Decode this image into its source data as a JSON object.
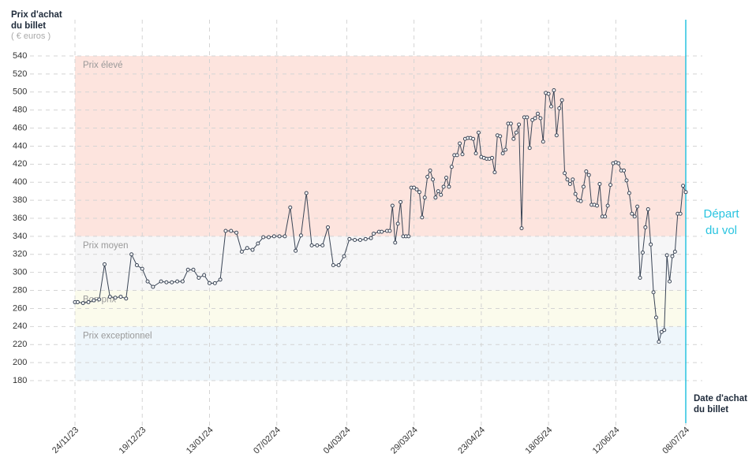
{
  "chart_data": {
    "type": "line",
    "y_title": "Prix d'achat du billet",
    "y_unit": "( € euros )",
    "x_title": "Date d'achat du billet",
    "annotation": {
      "text": "Départ du vol",
      "x": "08/07/24",
      "color": "#29c4e0"
    },
    "bands": [
      {
        "label": "Prix élevé",
        "from": 340,
        "to": 540,
        "color": "#fde4de"
      },
      {
        "label": "Prix moyen",
        "from": 280,
        "to": 340,
        "color": "#f6f6f7"
      },
      {
        "label": "Bon prix",
        "from": 240,
        "to": 280,
        "color": "#fbfbec"
      },
      {
        "label": "Prix exceptionnel",
        "from": 180,
        "to": 240,
        "color": "#eef6fb"
      }
    ],
    "ylim": [
      180,
      540
    ],
    "yticks": [
      180,
      200,
      220,
      240,
      260,
      280,
      300,
      320,
      340,
      360,
      380,
      400,
      420,
      440,
      460,
      480,
      500,
      520,
      540
    ],
    "xlim": [
      "24/11/23",
      "08/07/24"
    ],
    "xticks": [
      "24/11/23",
      "19/12/23",
      "13/01/24",
      "07/02/24",
      "04/03/24",
      "29/03/24",
      "23/04/24",
      "18/05/24",
      "12/06/24",
      "08/07/24"
    ],
    "grid": true,
    "x": [
      "24/11/23",
      "25/11/23",
      "27/11/23",
      "29/11/23",
      "01/12/23",
      "03/12/23",
      "05/12/23",
      "07/12/23",
      "09/12/23",
      "11/12/23",
      "13/12/23",
      "15/12/23",
      "17/12/23",
      "19/12/23",
      "21/12/23",
      "23/12/23",
      "26/12/23",
      "28/12/23",
      "30/12/23",
      "01/01/24",
      "03/01/24",
      "05/01/24",
      "07/01/24",
      "09/01/24",
      "11/01/24",
      "13/01/24",
      "15/01/24",
      "17/01/24",
      "19/01/24",
      "21/01/24",
      "23/01/24",
      "25/01/24",
      "27/01/24",
      "29/01/24",
      "31/01/24",
      "02/02/24",
      "04/02/24",
      "06/02/24",
      "08/02/24",
      "10/02/24",
      "12/02/24",
      "14/02/24",
      "16/02/24",
      "18/02/24",
      "20/02/24",
      "22/02/24",
      "24/02/24",
      "26/02/24",
      "28/02/24",
      "01/03/24",
      "03/03/24",
      "05/03/24",
      "07/03/24",
      "09/03/24",
      "11/03/24",
      "13/03/24",
      "14/03/24",
      "16/03/24",
      "17/03/24",
      "19/03/24",
      "20/03/24",
      "21/03/24",
      "22/03/24",
      "23/03/24",
      "24/03/24",
      "25/03/24",
      "26/03/24",
      "27/03/24",
      "28/03/24",
      "29/03/24",
      "30/03/24",
      "31/03/24",
      "01/04/24",
      "02/04/24",
      "03/04/24",
      "04/04/24",
      "05/04/24",
      "06/04/24",
      "07/04/24",
      "08/04/24",
      "09/04/24",
      "10/04/24",
      "11/04/24",
      "12/04/24",
      "13/04/24",
      "14/04/24",
      "15/04/24",
      "16/04/24",
      "17/04/24",
      "18/04/24",
      "19/04/24",
      "20/04/24",
      "21/04/24",
      "22/04/24",
      "23/04/24",
      "24/04/24",
      "25/04/24",
      "26/04/24",
      "27/04/24",
      "28/04/24",
      "29/04/24",
      "30/04/24",
      "01/05/24",
      "02/05/24",
      "03/05/24",
      "04/05/24",
      "05/05/24",
      "06/05/24",
      "07/05/24",
      "08/05/24",
      "09/05/24",
      "10/05/24",
      "11/05/24",
      "12/05/24",
      "13/05/24",
      "14/05/24",
      "15/05/24",
      "16/05/24",
      "17/05/24",
      "18/05/24",
      "19/05/24",
      "20/05/24",
      "21/05/24",
      "22/05/24",
      "23/05/24",
      "24/05/24",
      "25/05/24",
      "26/05/24",
      "27/05/24",
      "28/05/24",
      "29/05/24",
      "30/05/24",
      "31/05/24",
      "01/06/24",
      "02/06/24",
      "03/06/24",
      "04/06/24",
      "05/06/24",
      "06/06/24",
      "07/06/24",
      "08/06/24",
      "09/06/24",
      "10/06/24",
      "11/06/24",
      "12/06/24",
      "13/06/24",
      "14/06/24",
      "15/06/24",
      "16/06/24",
      "17/06/24",
      "18/06/24",
      "19/06/24",
      "20/06/24",
      "21/06/24",
      "22/06/24",
      "23/06/24",
      "24/06/24",
      "25/06/24",
      "26/06/24",
      "27/06/24",
      "28/06/24",
      "29/06/24",
      "30/06/24",
      "01/07/24",
      "02/07/24",
      "03/07/24",
      "04/07/24",
      "05/07/24",
      "06/07/24",
      "07/07/24",
      "08/07/24"
    ],
    "series": [
      {
        "color": "#3a4556",
        "values": [
          267,
          267,
          266,
          267,
          269,
          270,
          309,
          273,
          272,
          273,
          271,
          320,
          308,
          304,
          290,
          284,
          290,
          289,
          289,
          290,
          290,
          303,
          303,
          294,
          297,
          288,
          288,
          292,
          346,
          346,
          344,
          323,
          327,
          325,
          332,
          339,
          339,
          340,
          340,
          340,
          372,
          324,
          341,
          388,
          330,
          330,
          330,
          350,
          308,
          308,
          318,
          337,
          336,
          336,
          337,
          338,
          343,
          345,
          345,
          346,
          346,
          374,
          333,
          354,
          378,
          340,
          340,
          340,
          394,
          394,
          392,
          389,
          361,
          383,
          406,
          413,
          403,
          383,
          390,
          386,
          395,
          405,
          395,
          417,
          430,
          430,
          443,
          431,
          448,
          449,
          449,
          448,
          432,
          455,
          428,
          427,
          426,
          426,
          427,
          411,
          452,
          451,
          432,
          436,
          465,
          465,
          448,
          455,
          464,
          349,
          472,
          472,
          438,
          469,
          471,
          476,
          471,
          445,
          499,
          498,
          484,
          502,
          452,
          482,
          491,
          410,
          403,
          398,
          403,
          387,
          380,
          379,
          395,
          412,
          408,
          375,
          375,
          374,
          398,
          362,
          362,
          374,
          397,
          421,
          422,
          421,
          413,
          413,
          402,
          388,
          365,
          362,
          373,
          294,
          322,
          350,
          370,
          331,
          278,
          250,
          223,
          234,
          236,
          319,
          290,
          318,
          323,
          365,
          365,
          396,
          389
        ]
      }
    ]
  }
}
